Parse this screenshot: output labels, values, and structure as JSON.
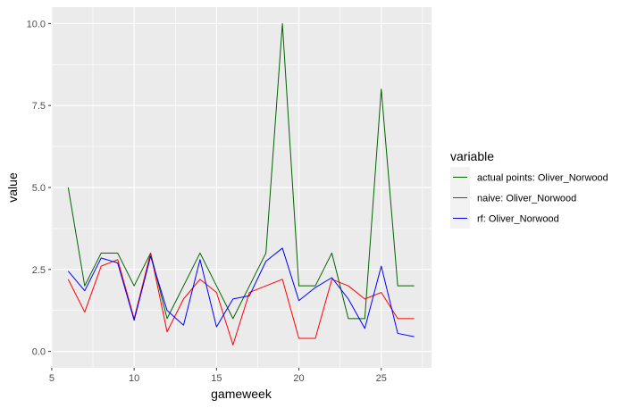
{
  "chart_data": {
    "type": "line",
    "xlabel": "gameweek",
    "ylabel": "value",
    "xlim": [
      4.95,
      28.05
    ],
    "ylim": [
      -0.5,
      10.5
    ],
    "x_ticks": [
      5,
      10,
      15,
      20,
      25
    ],
    "x_tick_labels": [
      "5",
      "10",
      "15",
      "20",
      "25"
    ],
    "y_ticks": [
      0,
      2.5,
      5,
      7.5,
      10
    ],
    "y_tick_labels": [
      "0.0",
      "2.5",
      "5.0",
      "7.5",
      "10.0"
    ],
    "grid": true,
    "legend_title": "variable",
    "legend_position": "right",
    "x": [
      6,
      7,
      8,
      9,
      10,
      11,
      12,
      13,
      14,
      15,
      16,
      17,
      18,
      19,
      20,
      21,
      22,
      23,
      24,
      25,
      26,
      27
    ],
    "series": [
      {
        "name": "actual points: Oliver_Norwood",
        "color": "#006400",
        "values": [
          5,
          2,
          3,
          3,
          2,
          3,
          1,
          2,
          3,
          2,
          1,
          2,
          3,
          10,
          2,
          2,
          3,
          1,
          1,
          8,
          2,
          2
        ]
      },
      {
        "name": "naive: Oliver_Norwood",
        "color": "#ff0000",
        "values": [
          2.2,
          1.2,
          2.6,
          2.8,
          1.0,
          3.0,
          0.6,
          1.6,
          2.2,
          1.8,
          0.2,
          1.8,
          2.0,
          2.2,
          0.4,
          0.4,
          2.2,
          2.0,
          1.6,
          1.8,
          1.0,
          1.0
        ]
      },
      {
        "name": "rf: Oliver_Norwood",
        "color": "#0000ff",
        "values": [
          2.45,
          1.85,
          2.85,
          2.7,
          0.95,
          2.9,
          1.25,
          0.8,
          2.8,
          0.75,
          1.6,
          1.7,
          2.75,
          3.15,
          1.55,
          1.95,
          2.25,
          1.6,
          0.7,
          2.6,
          0.55,
          0.45
        ]
      }
    ]
  }
}
